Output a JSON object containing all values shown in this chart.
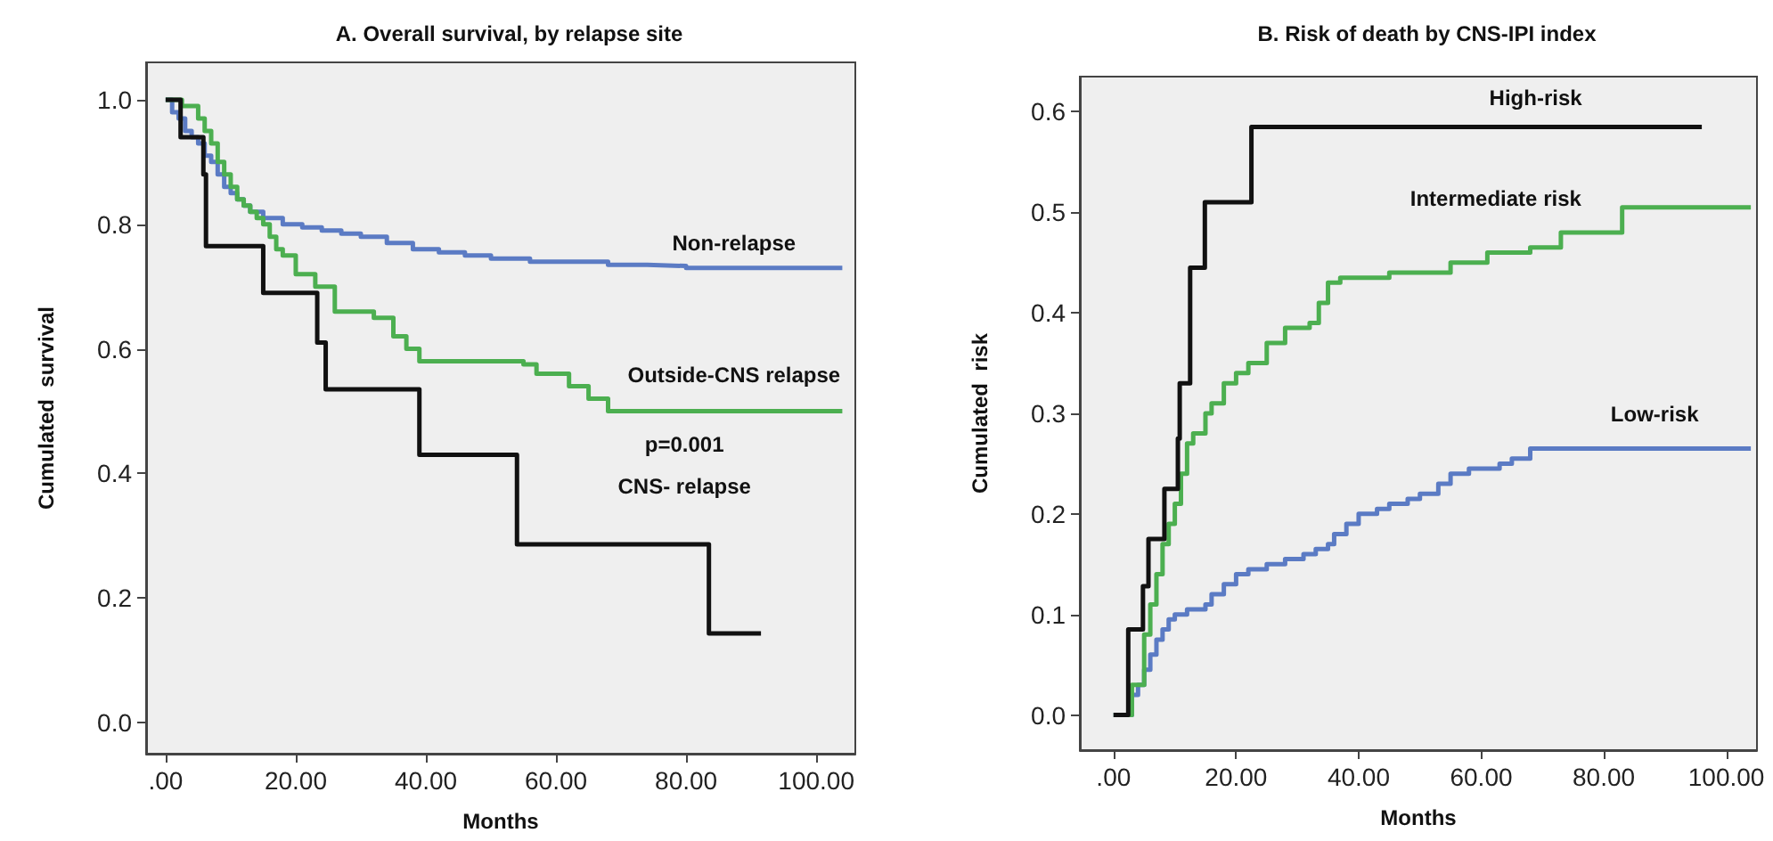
{
  "chart_data": [
    {
      "type": "step",
      "title": "A. Overall survival, by relapse site",
      "xlabel": "Months",
      "ylabel": "Cumulated  survival",
      "xlim": [
        -3,
        106
      ],
      "ylim": [
        -0.05,
        1.06
      ],
      "xticks": [
        {
          "value": 0,
          "label": ".00"
        },
        {
          "value": 20,
          "label": "20.00"
        },
        {
          "value": 40,
          "label": "40.00"
        },
        {
          "value": 60,
          "label": "60.00"
        },
        {
          "value": 80,
          "label": "80.00"
        },
        {
          "value": 100,
          "label": "100.00"
        }
      ],
      "yticks": [
        {
          "value": 0,
          "label": "0.0"
        },
        {
          "value": 0.2,
          "label": "0.2"
        },
        {
          "value": 0.4,
          "label": "0.4"
        },
        {
          "value": 0.6,
          "label": "0.6"
        },
        {
          "value": 0.8,
          "label": "0.8"
        },
        {
          "value": 1,
          "label": "1.0"
        }
      ],
      "grid": false,
      "legend": false,
      "marker": "none",
      "line_style": "solid",
      "series": [
        {
          "name": "Non-relapse",
          "color": "#5b7bc4",
          "x": [
            0,
            1,
            2,
            3,
            4,
            5,
            6,
            7,
            8,
            9,
            10,
            11,
            12,
            13,
            15,
            18,
            21,
            24,
            27,
            30,
            34,
            38,
            42,
            46,
            50,
            56,
            62,
            68,
            74,
            80,
            90,
            104
          ],
          "values": [
            1,
            0.98,
            0.97,
            0.95,
            0.94,
            0.93,
            0.91,
            0.9,
            0.88,
            0.86,
            0.85,
            0.84,
            0.83,
            0.82,
            0.81,
            0.8,
            0.795,
            0.79,
            0.785,
            0.78,
            0.77,
            0.76,
            0.755,
            0.75,
            0.745,
            0.74,
            0.74,
            0.735,
            0.733,
            0.73,
            0.73,
            0.73
          ]
        },
        {
          "name": "Outside-CNS relapse",
          "color": "#4caf50",
          "x": [
            0,
            2.5,
            5,
            6,
            7,
            8,
            9,
            10,
            11,
            12,
            13,
            14,
            15,
            16,
            17,
            18,
            20,
            23,
            26,
            32,
            35,
            37,
            39,
            55,
            57,
            62,
            65,
            68,
            104
          ],
          "values": [
            1,
            0.99,
            0.97,
            0.95,
            0.93,
            0.9,
            0.88,
            0.86,
            0.84,
            0.83,
            0.82,
            0.81,
            0.8,
            0.78,
            0.76,
            0.75,
            0.72,
            0.7,
            0.66,
            0.65,
            0.62,
            0.6,
            0.58,
            0.575,
            0.56,
            0.54,
            0.52,
            0.5,
            0.5
          ]
        },
        {
          "name": "CNS- relapse",
          "color": "#111111",
          "x": [
            0,
            2.3,
            5.8,
            6.2,
            15,
            23.3,
            24.6,
            39,
            54,
            83.5,
            91.5
          ],
          "values": [
            1,
            0.94,
            0.88,
            0.765,
            0.69,
            0.61,
            0.535,
            0.43,
            0.286,
            0.143,
            0.143
          ]
        }
      ],
      "annotations": [
        "p=0.001"
      ]
    },
    {
      "type": "step",
      "title": "B. Risk of death by CNS-IPI index",
      "xlabel": "Months",
      "ylabel": "Cumulated  risk",
      "xlim": [
        -5.5,
        105
      ],
      "ylim": [
        -0.035,
        0.635
      ],
      "xticks": [
        {
          "value": 0,
          "label": ".00"
        },
        {
          "value": 20,
          "label": "20.00"
        },
        {
          "value": 40,
          "label": "40.00"
        },
        {
          "value": 60,
          "label": "60.00"
        },
        {
          "value": 80,
          "label": "80.00"
        },
        {
          "value": 100,
          "label": "100.00"
        }
      ],
      "yticks": [
        {
          "value": 0,
          "label": "0.0"
        },
        {
          "value": 0.1,
          "label": "0.1"
        },
        {
          "value": 0.2,
          "label": "0.2"
        },
        {
          "value": 0.3,
          "label": "0.3"
        },
        {
          "value": 0.4,
          "label": "0.4"
        },
        {
          "value": 0.5,
          "label": "0.5"
        },
        {
          "value": 0.6,
          "label": "0.6"
        }
      ],
      "grid": false,
      "legend": false,
      "marker": "none",
      "line_style": "solid",
      "series": [
        {
          "name": "Low-risk",
          "color": "#5b7bc4",
          "x": [
            0,
            2,
            3,
            4,
            5,
            6,
            7,
            8,
            9,
            10,
            12,
            15,
            16,
            18,
            20,
            22,
            25,
            28,
            31,
            33,
            35,
            36,
            38,
            40,
            43,
            45,
            48,
            50,
            53,
            55,
            58,
            60,
            63,
            65,
            68,
            80,
            104
          ],
          "values": [
            0,
            0,
            0.02,
            0.03,
            0.045,
            0.06,
            0.075,
            0.085,
            0.095,
            0.1,
            0.105,
            0.11,
            0.12,
            0.13,
            0.14,
            0.145,
            0.15,
            0.155,
            0.16,
            0.165,
            0.17,
            0.18,
            0.19,
            0.2,
            0.205,
            0.21,
            0.215,
            0.22,
            0.23,
            0.24,
            0.245,
            0.245,
            0.25,
            0.255,
            0.265,
            0.265,
            0.265
          ]
        },
        {
          "name": "Intermediate risk",
          "color": "#4caf50",
          "x": [
            0,
            1.5,
            3,
            5,
            6,
            7,
            8,
            9,
            10,
            11,
            12,
            13,
            15,
            16,
            18,
            20,
            22,
            25,
            28,
            32,
            33.5,
            35,
            37,
            45,
            55,
            61,
            68,
            73,
            83,
            104
          ],
          "values": [
            0,
            0,
            0.03,
            0.08,
            0.11,
            0.14,
            0.17,
            0.19,
            0.21,
            0.24,
            0.27,
            0.28,
            0.3,
            0.31,
            0.33,
            0.34,
            0.35,
            0.37,
            0.385,
            0.39,
            0.41,
            0.43,
            0.435,
            0.44,
            0.45,
            0.46,
            0.465,
            0.48,
            0.505,
            0.505
          ]
        },
        {
          "name": "High-risk",
          "color": "#111111",
          "x": [
            0,
            2.4,
            4.8,
            5.7,
            8.3,
            10.5,
            10.8,
            12.5,
            14.9,
            22.5,
            96
          ],
          "values": [
            0,
            0.085,
            0.128,
            0.175,
            0.225,
            0.275,
            0.33,
            0.445,
            0.51,
            0.585,
            0.585
          ]
        }
      ]
    }
  ]
}
